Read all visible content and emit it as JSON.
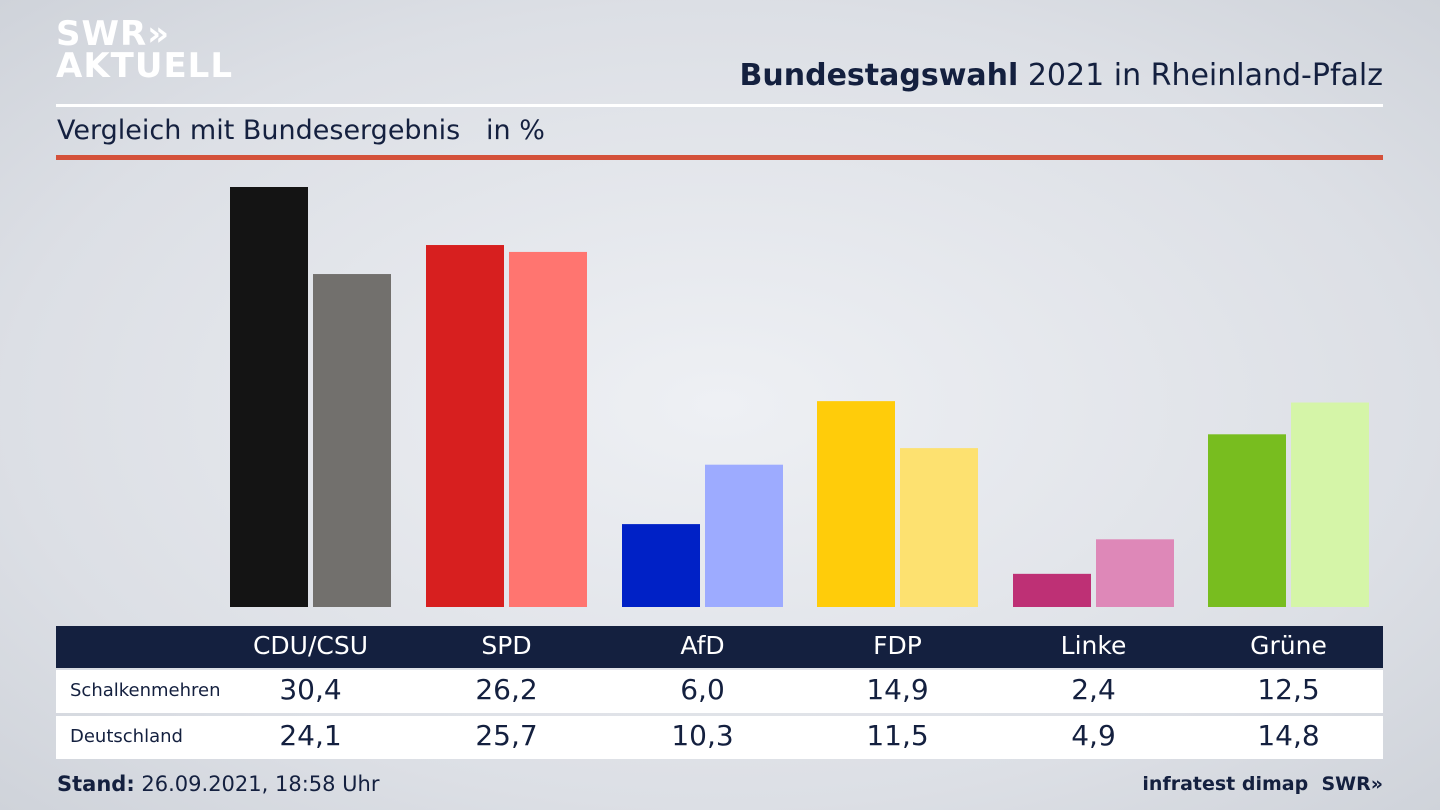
{
  "logo": {
    "line1": "SWR»",
    "line2": "AKTUELL"
  },
  "header": {
    "title_bold": "Bundestagswahl",
    "title_rest": " 2021 in Rheinland-Pfalz",
    "subtitle": "Vergleich mit Bundesergebnis   in %"
  },
  "chart_data": {
    "type": "bar",
    "categories": [
      "CDU/CSU",
      "SPD",
      "AfD",
      "FDP",
      "Linke",
      "Grüne"
    ],
    "series": [
      {
        "name": "Schalkenmehren",
        "values": [
          30.4,
          26.2,
          6.0,
          14.9,
          2.4,
          12.5
        ],
        "display": [
          "30,4",
          "26,2",
          "6,0",
          "14,9",
          "2,4",
          "12,5"
        ],
        "colors": [
          "#141414",
          "#d71f1f",
          "#0021c6",
          "#ffcc0a",
          "#be3075",
          "#78bd1f"
        ]
      },
      {
        "name": "Deutschland",
        "values": [
          24.1,
          25.7,
          10.3,
          11.5,
          4.9,
          14.8
        ],
        "display": [
          "24,1",
          "25,7",
          "10,3",
          "11,5",
          "4,9",
          "14,8"
        ],
        "colors": [
          "#72706d",
          "#ff7570",
          "#9dabff",
          "#fde170",
          "#de88b8",
          "#d5f5a8"
        ]
      }
    ],
    "ylim": [
      0,
      30.4
    ]
  },
  "footer": {
    "stand_label": "Stand:",
    "stand_value": " 26.09.2021, 18:58 Uhr",
    "source": "infratest dimap  SWR»"
  }
}
